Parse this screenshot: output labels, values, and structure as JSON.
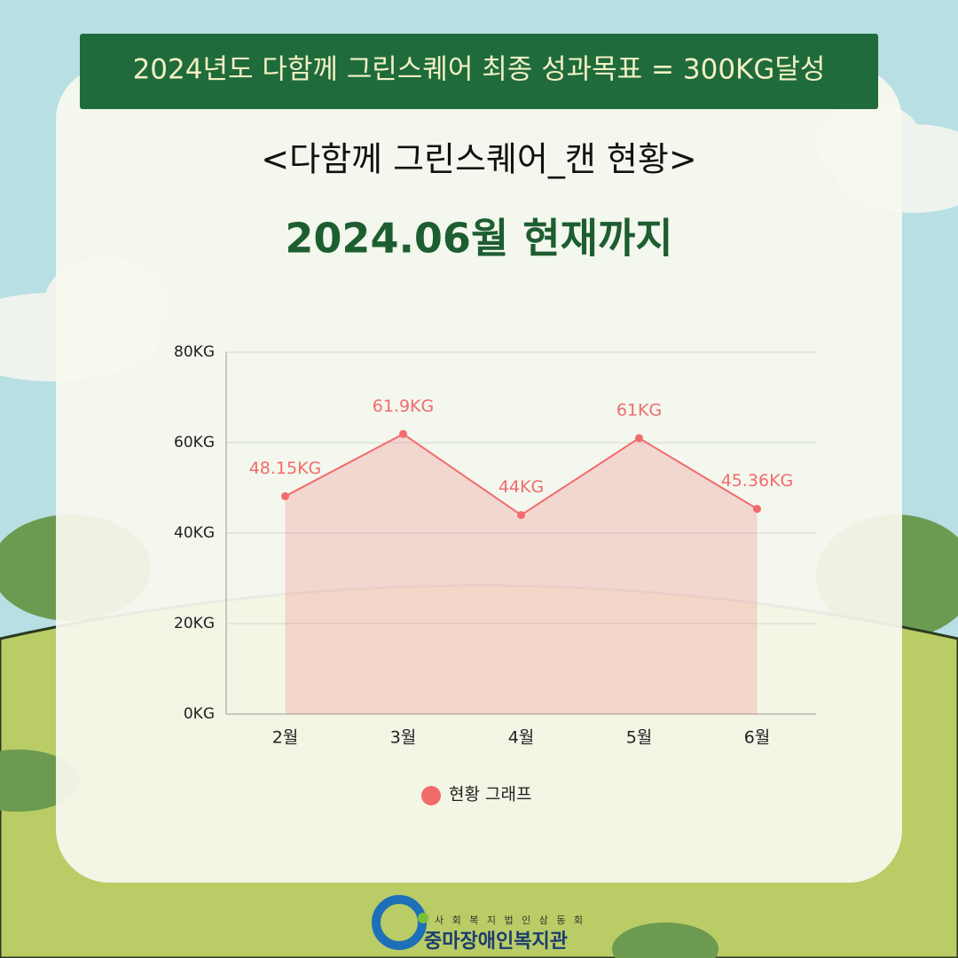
{
  "banner": "2024년도 다함께 그린스퀘어 최종 성과목표 = 300KG달성",
  "heading": "<다함께 그린스퀘어_캔 현황>",
  "subheading": "2024.06월 현재까지",
  "chart_data": {
    "type": "area",
    "categories": [
      "2월",
      "3월",
      "4월",
      "5월",
      "6월"
    ],
    "series": [
      {
        "name": "현황 그래프",
        "color": "#f26b6b",
        "values": [
          48.15,
          61.9,
          44,
          61,
          45.36
        ],
        "value_labels": [
          "48.15KG",
          "61.9KG",
          "44KG",
          "61KG",
          "45.36KG"
        ]
      }
    ],
    "ylim": [
      0,
      80
    ],
    "yticks": [
      {
        "value": 0,
        "label": "0KG"
      },
      {
        "value": 20,
        "label": "20KG"
      },
      {
        "value": 40,
        "label": "40KG"
      },
      {
        "value": 60,
        "label": "60KG"
      },
      {
        "value": 80,
        "label": "80KG"
      }
    ],
    "grid": true,
    "legend": "bottom"
  },
  "logo": {
    "org": "사 회 복 지 법 인 삼 동 회",
    "name": "중마장애인복지관"
  }
}
